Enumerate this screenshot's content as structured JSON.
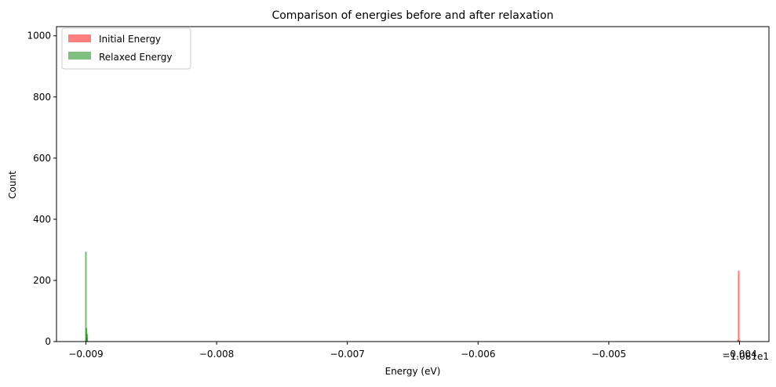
{
  "chart_data": {
    "type": "histogram",
    "title": "Comparison of energies before and after relaxation",
    "xlabel": "Energy (eV)",
    "ylabel": "Count",
    "x_offset_label": "−1.081e1",
    "xlim": [
      -0.009225,
      -0.003775
    ],
    "ylim": [
      0,
      1030
    ],
    "x_ticks": [
      {
        "value": -0.009,
        "label": "−0.009"
      },
      {
        "value": -0.008,
        "label": "−0.008"
      },
      {
        "value": -0.007,
        "label": "−0.007"
      },
      {
        "value": -0.006,
        "label": "−0.006"
      },
      {
        "value": -0.005,
        "label": "−0.005"
      },
      {
        "value": -0.004,
        "label": "−0.004"
      }
    ],
    "y_ticks": [
      {
        "value": 0,
        "label": "0"
      },
      {
        "value": 200,
        "label": "200"
      },
      {
        "value": 400,
        "label": "400"
      },
      {
        "value": 600,
        "label": "600"
      },
      {
        "value": 800,
        "label": "800"
      },
      {
        "value": 1000,
        "label": "1000"
      }
    ],
    "legend_position": "upper-left",
    "series": [
      {
        "name": "Initial Energy",
        "color": "#ff0000",
        "alpha": 0.5,
        "bins": [
          {
            "x": -0.004012,
            "count": 6
          },
          {
            "x": -0.004006,
            "count": 232
          },
          {
            "x": -0.004,
            "count": 4
          }
        ]
      },
      {
        "name": "Relaxed Energy",
        "color": "#008000",
        "alpha": 0.5,
        "bins": [
          {
            "x": -0.009,
            "count": 294
          },
          {
            "x": -0.008996,
            "count": 44
          },
          {
            "x": -0.008993,
            "count": 12
          },
          {
            "x": -0.00899,
            "count": 25
          }
        ]
      }
    ]
  }
}
